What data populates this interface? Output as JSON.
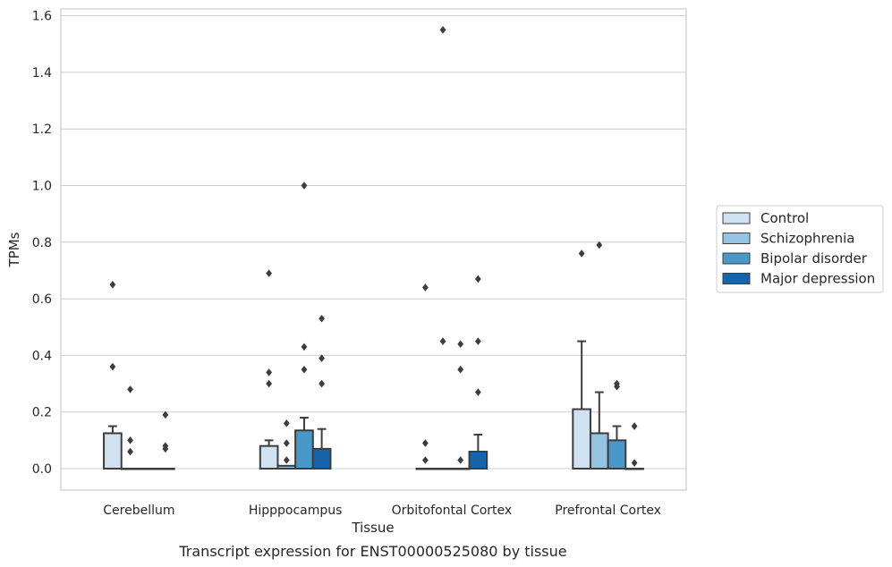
{
  "caption": "Transcript expression for ENST00000525080 by tissue",
  "chart_data": {
    "type": "boxplot",
    "xlabel": "Tissue",
    "ylabel": "TPMs",
    "ylim": [
      -0.075,
      1.63
    ],
    "yticks": [
      "0.0",
      "0.2",
      "0.4",
      "0.6",
      "0.8",
      "1.0",
      "1.2",
      "1.4",
      "1.6"
    ],
    "grid": true,
    "legend_position": "right",
    "categories": [
      "Cerebellum",
      "Hipppocampus",
      "Orbitofontal Cortex",
      "Prefrontal Cortex"
    ],
    "series": [
      {
        "name": "Control",
        "color": "#d0e1f2",
        "boxes": [
          {
            "q1": 0.0,
            "median": 0.0,
            "q3": 0.125,
            "whisker_low": 0.0,
            "whisker_high": 0.15,
            "outliers": [
              0.36,
              0.65
            ]
          },
          {
            "q1": 0.0,
            "median": 0.0,
            "q3": 0.08,
            "whisker_low": 0.0,
            "whisker_high": 0.1,
            "outliers": [
              0.3,
              0.34,
              0.69
            ]
          },
          {
            "q1": 0.0,
            "median": 0.0,
            "q3": 0.0,
            "whisker_low": 0.0,
            "whisker_high": 0.0,
            "outliers": [
              0.03,
              0.09,
              0.64
            ]
          },
          {
            "q1": 0.0,
            "median": 0.0,
            "q3": 0.21,
            "whisker_low": 0.0,
            "whisker_high": 0.45,
            "outliers": [
              0.76
            ]
          }
        ]
      },
      {
        "name": "Schizophrenia",
        "color": "#94c4df",
        "boxes": [
          {
            "q1": 0.0,
            "median": 0.0,
            "q3": 0.0,
            "whisker_low": 0.0,
            "whisker_high": 0.0,
            "outliers": [
              0.06,
              0.1,
              0.28
            ]
          },
          {
            "q1": 0.0,
            "median": 0.0,
            "q3": 0.01,
            "whisker_low": 0.0,
            "whisker_high": 0.01,
            "outliers": [
              0.03,
              0.09,
              0.16
            ]
          },
          {
            "q1": 0.0,
            "median": 0.0,
            "q3": 0.0,
            "whisker_low": 0.0,
            "whisker_high": 0.0,
            "outliers": [
              0.45,
              1.55
            ]
          },
          {
            "q1": 0.0,
            "median": 0.0,
            "q3": 0.125,
            "whisker_low": 0.0,
            "whisker_high": 0.27,
            "outliers": [
              0.79
            ]
          }
        ]
      },
      {
        "name": "Bipolar disorder",
        "color": "#4a98c9",
        "boxes": [
          {
            "q1": 0.0,
            "median": 0.0,
            "q3": 0.0,
            "whisker_low": 0.0,
            "whisker_high": 0.0,
            "outliers": []
          },
          {
            "q1": 0.0,
            "median": 0.0,
            "q3": 0.135,
            "whisker_low": 0.0,
            "whisker_high": 0.18,
            "outliers": [
              0.35,
              0.43,
              1.0
            ]
          },
          {
            "q1": 0.0,
            "median": 0.0,
            "q3": 0.0,
            "whisker_low": 0.0,
            "whisker_high": 0.0,
            "outliers": [
              0.03,
              0.35,
              0.44
            ]
          },
          {
            "q1": 0.0,
            "median": 0.0,
            "q3": 0.1,
            "whisker_low": 0.0,
            "whisker_high": 0.15,
            "outliers": [
              0.29,
              0.3
            ]
          }
        ]
      },
      {
        "name": "Major depression",
        "color": "#1764ab",
        "boxes": [
          {
            "q1": 0.0,
            "median": 0.0,
            "q3": 0.0,
            "whisker_low": 0.0,
            "whisker_high": 0.0,
            "outliers": [
              0.07,
              0.08,
              0.19
            ]
          },
          {
            "q1": 0.0,
            "median": 0.0,
            "q3": 0.07,
            "whisker_low": 0.0,
            "whisker_high": 0.14,
            "outliers": [
              0.3,
              0.39,
              0.53
            ]
          },
          {
            "q1": 0.0,
            "median": 0.0,
            "q3": 0.06,
            "whisker_low": 0.0,
            "whisker_high": 0.12,
            "outliers": [
              0.27,
              0.45,
              0.67
            ]
          },
          {
            "q1": 0.0,
            "median": 0.0,
            "q3": 0.0,
            "whisker_low": 0.0,
            "whisker_high": 0.0,
            "outliers": [
              0.02,
              0.15
            ]
          }
        ]
      }
    ]
  }
}
